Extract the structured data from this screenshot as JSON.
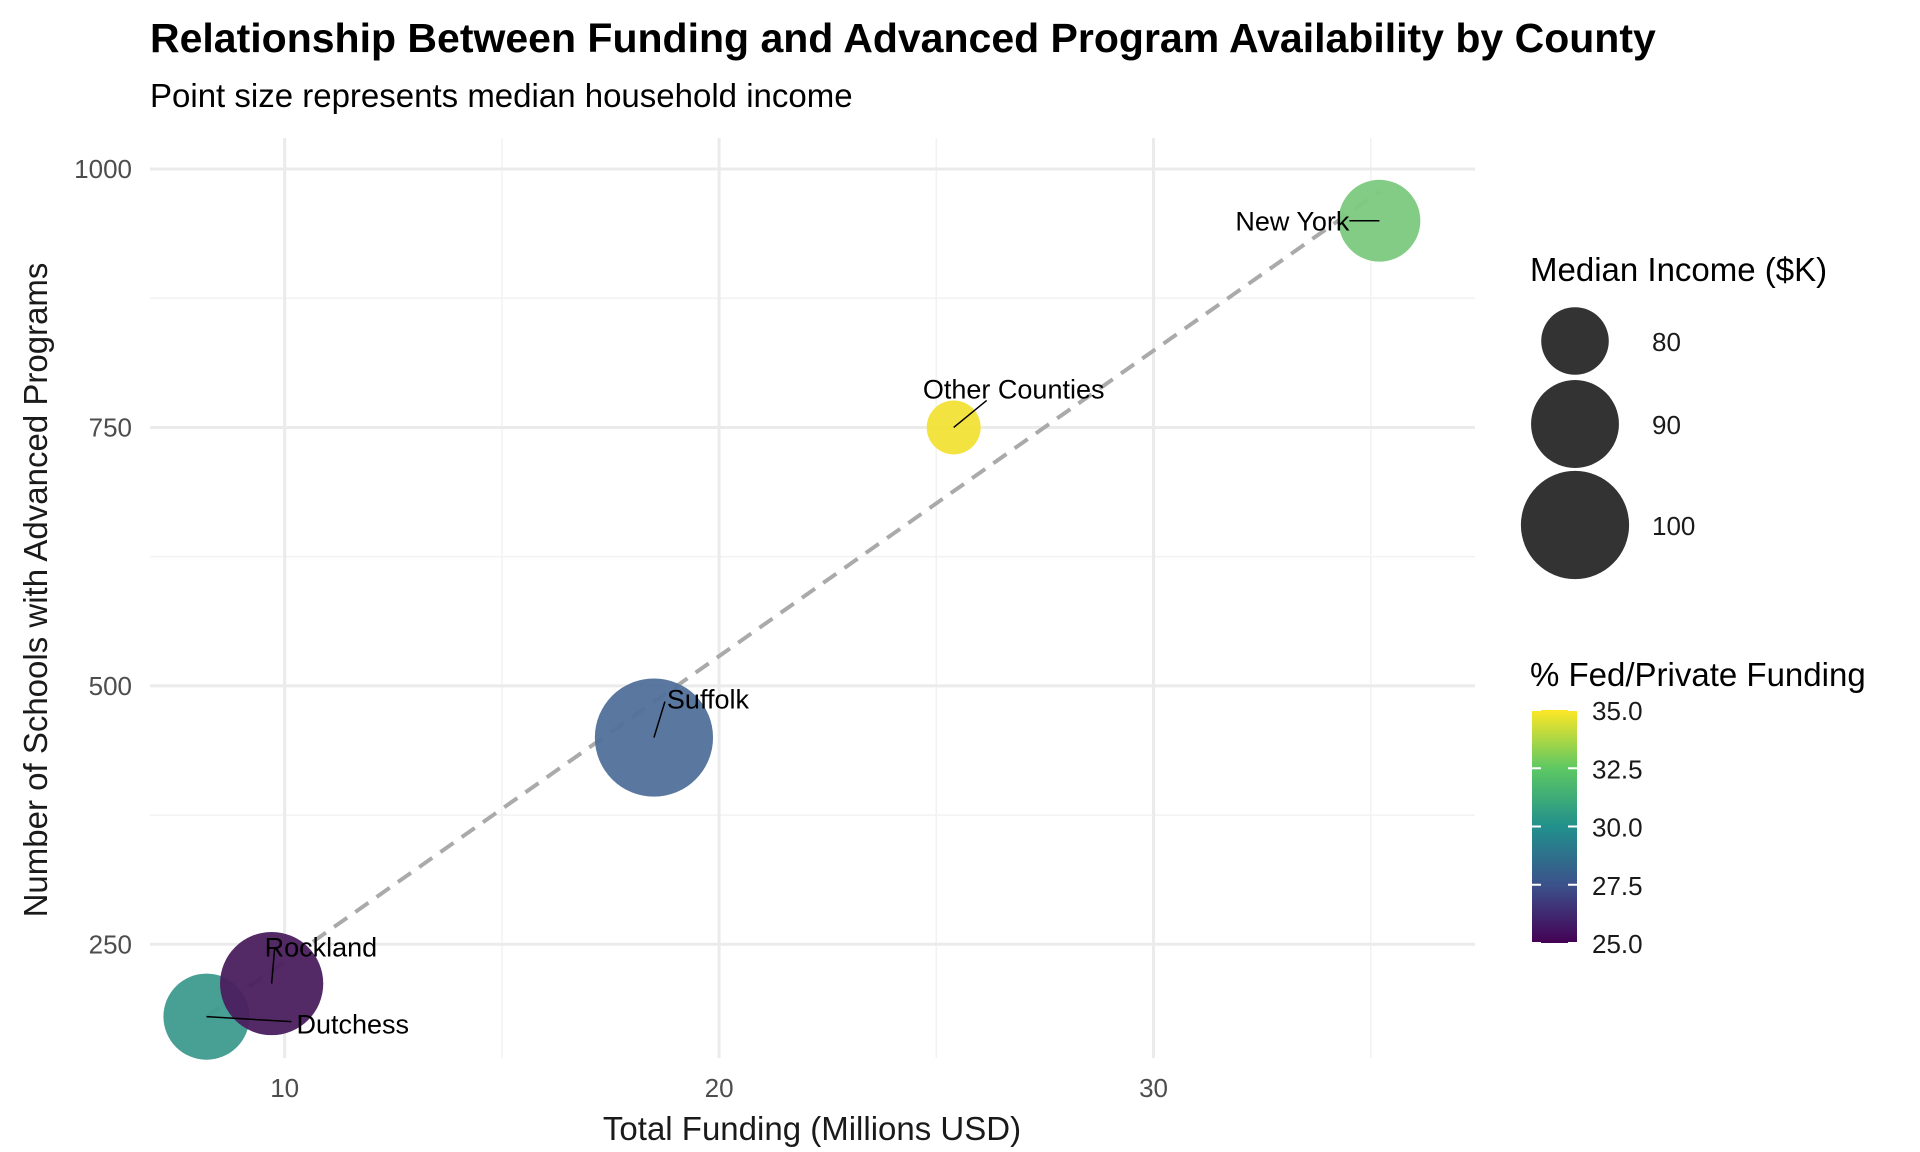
{
  "chart_data": {
    "type": "scatter",
    "title": "Relationship Between Funding and Advanced Program Availability by County",
    "subtitle": "Point size represents median household income",
    "xlabel": "Total Funding (Millions USD)",
    "ylabel": "Number of Schools with Advanced Programs",
    "xlim": [
      6.9,
      37.4
    ],
    "ylim": [
      140,
      1030
    ],
    "x_ticks": [
      10,
      20,
      30
    ],
    "x_tick_labels": [
      "10",
      "20",
      "30"
    ],
    "x_minor_ticks": [
      15,
      25,
      35
    ],
    "y_ticks": [
      250,
      500,
      750,
      1000
    ],
    "y_tick_labels": [
      "250",
      "500",
      "750",
      "1000"
    ],
    "y_minor_ticks": [
      375,
      625,
      875
    ],
    "grid": true,
    "points": [
      {
        "label": "Dutchess",
        "x": 8.2,
        "y": 180,
        "income": 87,
        "fed_private_pct": 29.2,
        "color": "#3e9a8e"
      },
      {
        "label": "Rockland",
        "x": 9.7,
        "y": 212,
        "income": 95,
        "fed_private_pct": 25.4,
        "color": "#4b1f5e"
      },
      {
        "label": "Suffolk",
        "x": 18.5,
        "y": 450,
        "income": 102,
        "fed_private_pct": 27.4,
        "color": "#51709a"
      },
      {
        "label": "Other Counties",
        "x": 25.4,
        "y": 750,
        "income": 72,
        "fed_private_pct": 35.0,
        "color": "#f2e137"
      },
      {
        "label": "New York",
        "x": 35.2,
        "y": 950,
        "income": 85,
        "fed_private_pct": 32.3,
        "color": "#7cc97f"
      }
    ],
    "trend_line": {
      "x": [
        8.2,
        35.2
      ],
      "y": [
        180,
        978
      ],
      "style": "dashed",
      "color": "#aaaaaa"
    },
    "legends": {
      "size": {
        "title": "Median Income ($K)",
        "entries": [
          {
            "label": "80",
            "value": 80
          },
          {
            "label": "90",
            "value": 90
          },
          {
            "label": "100",
            "value": 100
          }
        ]
      },
      "color": {
        "title": "% Fed/Private Funding",
        "range": [
          25.0,
          35.0
        ],
        "tick_labels": [
          "25.0",
          "27.5",
          "30.0",
          "32.5",
          "35.0"
        ],
        "tick_values": [
          25.0,
          27.5,
          30.0,
          32.5,
          35.0
        ],
        "gradient": [
          "#440154",
          "#3b528b",
          "#21908c",
          "#5dc863",
          "#fde725"
        ]
      },
      "position": "right"
    }
  }
}
